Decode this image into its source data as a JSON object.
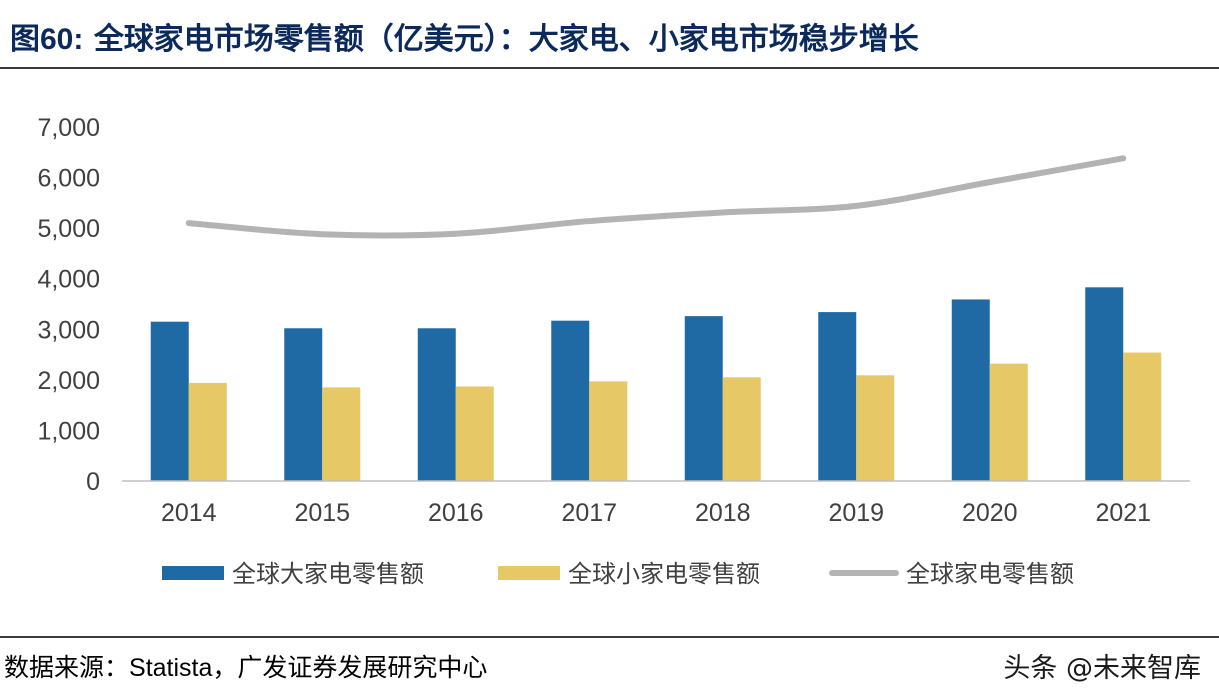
{
  "header": {
    "figure_label": "图",
    "figure_number": "60:",
    "title": "全球家电市场零售额（亿美元）：大家电、小家电市场稳步增长"
  },
  "footer": {
    "source_prefix": "数据来源：",
    "source_name": "Statista",
    "source_suffix": "，广发证券发展研究中心",
    "watermark": "头条 @未来智库"
  },
  "chart_data": {
    "type": "bar",
    "categories": [
      "2014",
      "2015",
      "2016",
      "2017",
      "2018",
      "2019",
      "2020",
      "2021"
    ],
    "series": [
      {
        "name": "全球大家电零售额",
        "type": "bar",
        "color": "#1f6aa5",
        "values": [
          3150,
          3020,
          3020,
          3170,
          3260,
          3340,
          3590,
          3830
        ]
      },
      {
        "name": "全球小家电零售额",
        "type": "bar",
        "color": "#e6c866",
        "values": [
          1940,
          1850,
          1870,
          1970,
          2050,
          2090,
          2320,
          2540
        ]
      },
      {
        "name": "全球家电零售额",
        "type": "line",
        "color": "#b3b3b3",
        "values": [
          5100,
          4880,
          4890,
          5140,
          5310,
          5440,
          5910,
          6380
        ]
      }
    ],
    "ylim": [
      0,
      7000
    ],
    "yticks": [
      "0",
      "1,000",
      "2,000",
      "3,000",
      "4,000",
      "5,000",
      "6,000",
      "7,000"
    ],
    "grid": false,
    "legend_position": "bottom"
  }
}
